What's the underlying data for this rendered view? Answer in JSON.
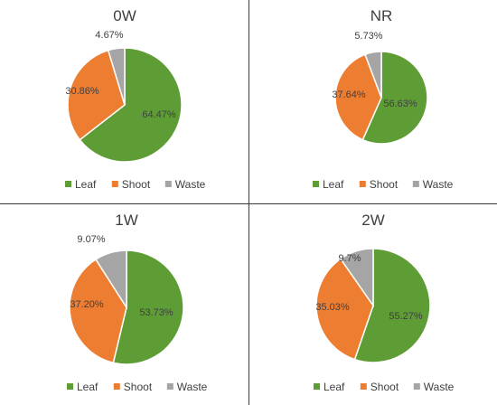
{
  "chart_data": [
    {
      "type": "pie",
      "title": "0W",
      "categories": [
        "Leaf",
        "Shoot",
        "Waste"
      ],
      "values": [
        64.47,
        30.86,
        4.67
      ],
      "data_labels": [
        "64.47%",
        "30.86%",
        "4.67%"
      ],
      "colors": [
        "#5e9c36",
        "#ed7d31",
        "#a5a5a5"
      ],
      "legend_position": "bottom"
    },
    {
      "type": "pie",
      "title": "NR",
      "categories": [
        "Leaf",
        "Shoot",
        "Waste"
      ],
      "values": [
        56.63,
        37.64,
        5.73
      ],
      "data_labels": [
        "56.63%",
        "37.64%",
        "5.73%"
      ],
      "colors": [
        "#5e9c36",
        "#ed7d31",
        "#a5a5a5"
      ],
      "legend_position": "bottom"
    },
    {
      "type": "pie",
      "title": "1W",
      "categories": [
        "Leaf",
        "Shoot",
        "Waste"
      ],
      "values": [
        53.73,
        37.2,
        9.07
      ],
      "data_labels": [
        "53.73%",
        "37.20%",
        "9.07%"
      ],
      "colors": [
        "#5e9c36",
        "#ed7d31",
        "#a5a5a5"
      ],
      "legend_position": "bottom"
    },
    {
      "type": "pie",
      "title": "2W",
      "categories": [
        "Leaf",
        "Shoot",
        "Waste"
      ],
      "values": [
        55.27,
        35.03,
        9.7
      ],
      "data_labels": [
        "55.27%",
        "35.03%",
        "9.7%"
      ],
      "colors": [
        "#5e9c36",
        "#ed7d31",
        "#a5a5a5"
      ],
      "legend_position": "bottom"
    }
  ]
}
